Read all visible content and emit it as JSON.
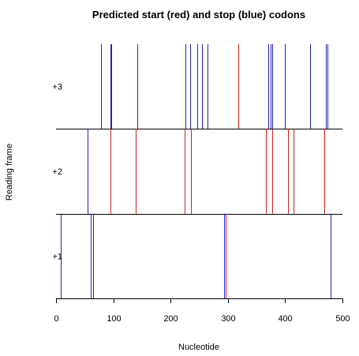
{
  "chart_data": {
    "type": "strip",
    "title": "Predicted start (red) and stop (blue) codons",
    "xlabel": "Nucleotide",
    "ylabel": "Reading frame",
    "xlim": [
      0,
      500
    ],
    "x_ticks": [
      0,
      100,
      200,
      300,
      400,
      500
    ],
    "frames": [
      {
        "label": "+3",
        "starts": [
          318
        ],
        "stops": [
          79,
          95,
          97,
          142,
          226,
          234,
          246,
          255,
          264,
          370,
          375,
          378,
          399,
          444,
          471,
          474
        ]
      },
      {
        "label": "+2",
        "starts": [
          95,
          139,
          225,
          236,
          366,
          378,
          405,
          414,
          469
        ],
        "stops": [
          55
        ]
      },
      {
        "label": "+1",
        "starts": [
          296
        ],
        "stops": [
          8,
          60,
          65,
          294,
          479
        ]
      }
    ],
    "colors": {
      "start": "#cc2222",
      "stop": "#2222bb"
    }
  }
}
